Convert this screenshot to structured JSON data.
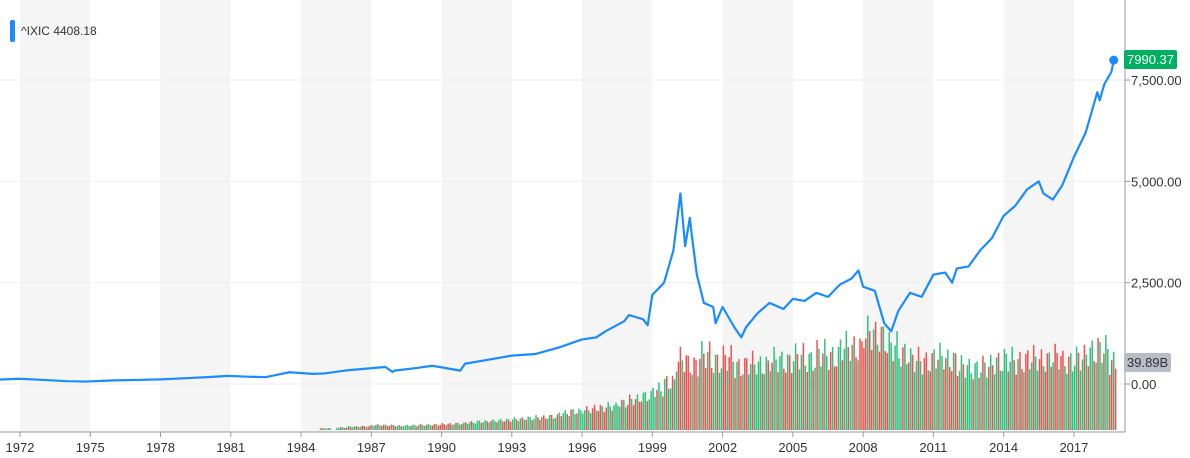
{
  "legend": {
    "symbol": "^IXIC",
    "value": "4408.18"
  },
  "last_price_label": "7990.37",
  "last_volume_label": "39.89B",
  "colors": {
    "line": "#1a8cff",
    "price_tag": "#00b061",
    "volume_tag": "#b8bcc4",
    "up": "#2ec27e",
    "down": "#f0504f",
    "band": "#f5f5f5"
  },
  "chart_data": {
    "type": "line",
    "title": "",
    "xlabel": "",
    "ylabel": "",
    "xlim": [
      1971.1,
      2019.2
    ],
    "ylim": [
      -1150,
      8200
    ],
    "grid": true,
    "legend_position": "top-left",
    "y_ticks": [
      "0.00",
      "2,500.00",
      "5,000.00",
      "7,500.00"
    ],
    "y_tick_values": [
      0,
      2500,
      5000,
      7500
    ],
    "x_ticks": [
      "1972",
      "1975",
      "1978",
      "1981",
      "1984",
      "1987",
      "1990",
      "1993",
      "1996",
      "1999",
      "2002",
      "2005",
      "2008",
      "2011",
      "2014",
      "2017"
    ],
    "series": [
      {
        "name": "^IXIC",
        "x": [
          1971.1,
          1972,
          1973,
          1974,
          1974.8,
          1975.5,
          1976,
          1977,
          1978,
          1979,
          1980,
          1980.9,
          1981.7,
          1982.5,
          1983,
          1983.5,
          1984.5,
          1985,
          1986,
          1987.6,
          1987.9,
          1988,
          1989,
          1989.6,
          1990.8,
          1991,
          1992,
          1993,
          1994,
          1995,
          1996,
          1996.6,
          1997,
          1997.8,
          1998,
          1998.6,
          1998.8,
          1999,
          1999.5,
          1999.9,
          2000.2,
          2000.4,
          2000.6,
          2000.7,
          2000.9,
          2001.2,
          2001.6,
          2001.7,
          2002,
          2002.5,
          2002.8,
          2003,
          2003.5,
          2004,
          2004.6,
          2005,
          2005.5,
          2006,
          2006.5,
          2007,
          2007.5,
          2007.8,
          2008,
          2008.5,
          2008.9,
          2009.2,
          2009.5,
          2010,
          2010.5,
          2011,
          2011.5,
          2011.8,
          2012,
          2012.5,
          2013,
          2013.5,
          2014,
          2014.5,
          2015,
          2015.5,
          2015.7,
          2016.1,
          2016.5,
          2017,
          2017.5,
          2018,
          2018.1,
          2018.3,
          2018.6,
          2018.7
        ],
        "y": [
          110,
          130,
          100,
          70,
          60,
          78,
          90,
          100,
          115,
          140,
          170,
          200,
          180,
          170,
          230,
          290,
          250,
          260,
          340,
          420,
          300,
          330,
          400,
          450,
          330,
          500,
          600,
          700,
          740,
          900,
          1100,
          1150,
          1300,
          1550,
          1700,
          1600,
          1450,
          2200,
          2500,
          3300,
          4700,
          3400,
          4100,
          3600,
          2700,
          2000,
          1900,
          1500,
          1900,
          1400,
          1150,
          1400,
          1750,
          2000,
          1850,
          2100,
          2050,
          2250,
          2150,
          2450,
          2600,
          2800,
          2400,
          2300,
          1500,
          1300,
          1800,
          2250,
          2150,
          2700,
          2750,
          2500,
          2850,
          2900,
          3300,
          3600,
          4150,
          4400,
          4800,
          5000,
          4700,
          4550,
          4900,
          5600,
          6200,
          7200,
          7000,
          7400,
          7700,
          7990
        ]
      }
    ],
    "volume": {
      "unit": "B",
      "x": [
        1984.8,
        1985.5,
        1986,
        1986.5,
        1987,
        1987.5,
        1988,
        1988.5,
        1989,
        1989.5,
        1990,
        1990.5,
        1991,
        1991.5,
        1992,
        1992.5,
        1993,
        1993.5,
        1994,
        1994.5,
        1995,
        1995.5,
        1996,
        1996.5,
        1997,
        1997.5,
        1998,
        1998.5,
        1999,
        1999.5,
        2000,
        2000.5,
        2001,
        2001.5,
        2002,
        2002.5,
        2003,
        2003.5,
        2004,
        2004.5,
        2005,
        2005.5,
        2006,
        2006.5,
        2007,
        2007.5,
        2008,
        2008.5,
        2009,
        2009.5,
        2010,
        2010.5,
        2011,
        2011.5,
        2012,
        2012.5,
        2013,
        2013.5,
        2014,
        2014.5,
        2015,
        2015.5,
        2016,
        2016.5,
        2017,
        2017.5,
        2018,
        2018.5
      ],
      "values": [
        1,
        1.5,
        2,
        2.2,
        3,
        2.8,
        2.5,
        2.7,
        3,
        3.2,
        3.5,
        3.8,
        4.5,
        5,
        5.5,
        5.8,
        6.5,
        7,
        7.5,
        8,
        10,
        11,
        12,
        13,
        14,
        16,
        18,
        20,
        24,
        28,
        42,
        38,
        45,
        40,
        43,
        37,
        40,
        38,
        42,
        40,
        44,
        41,
        46,
        43,
        50,
        48,
        58,
        55,
        50,
        45,
        42,
        40,
        44,
        41,
        38,
        36,
        38,
        40,
        42,
        40,
        43,
        41,
        44,
        40,
        43,
        46,
        48,
        39.89
      ],
      "direction": [
        "up",
        "up",
        "up",
        "down",
        "up",
        "down",
        "up",
        "up",
        "up",
        "down",
        "down",
        "up",
        "up",
        "up",
        "up",
        "down",
        "up",
        "up",
        "down",
        "up",
        "up",
        "up",
        "up",
        "down",
        "up",
        "up",
        "down",
        "up",
        "up",
        "up",
        "down",
        "down",
        "down",
        "up",
        "down",
        "down",
        "up",
        "up",
        "up",
        "down",
        "up",
        "up",
        "up",
        "down",
        "up",
        "down",
        "down",
        "down",
        "up",
        "up",
        "up",
        "down",
        "up",
        "down",
        "up",
        "up",
        "up",
        "up",
        "up",
        "down",
        "up",
        "down",
        "down",
        "up",
        "up",
        "up",
        "up",
        "down"
      ]
    }
  }
}
